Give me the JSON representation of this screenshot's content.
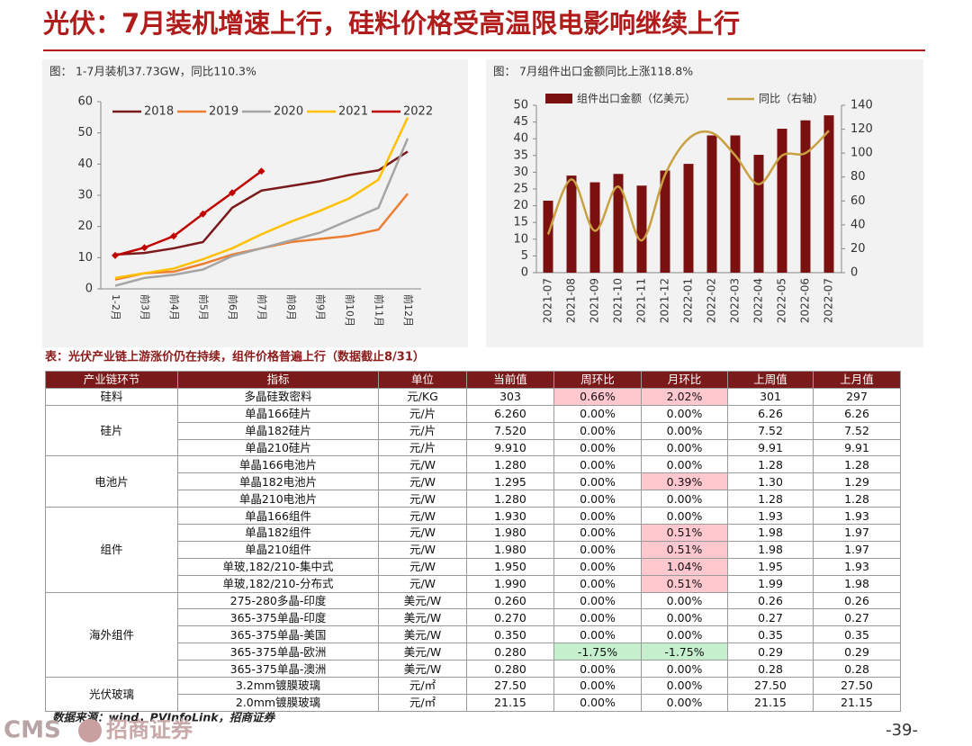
{
  "header": {
    "title": "光伏：7月装机增速上行，硅料价格受高温限电影响继续上行"
  },
  "chart_data": [
    {
      "type": "line",
      "title": "图：  1-7月装机37.73GW，同比110.3%",
      "categories": [
        "1-2月",
        "前3月",
        "前4月",
        "前5月",
        "前6月",
        "前7月",
        "前8月",
        "前9月",
        "前10月",
        "前11月",
        "前12月"
      ],
      "series": [
        {
          "name": "2018",
          "color": "#7b1a1a",
          "values": [
            11,
            11.5,
            13,
            15,
            26,
            31.5,
            33,
            34.5,
            36.5,
            38,
            44
          ]
        },
        {
          "name": "2019",
          "color": "#ed7d31",
          "values": [
            3,
            5,
            5.5,
            8,
            11,
            13,
            15,
            16,
            17,
            19,
            30.5
          ]
        },
        {
          "name": "2020",
          "color": "#a5a5a5",
          "values": [
            1,
            3.5,
            4.5,
            6.2,
            10.5,
            13,
            15.5,
            18,
            22,
            26,
            48.2
          ]
        },
        {
          "name": "2021",
          "color": "#ffc000",
          "values": [
            3.5,
            5,
            6.5,
            9.5,
            13,
            17.5,
            21.5,
            25,
            29,
            35,
            54.9
          ]
        },
        {
          "name": "2022",
          "color": "#c00000",
          "values": [
            10.7,
            13.2,
            16.9,
            24,
            30.8,
            37.73,
            null,
            null,
            null,
            null,
            null
          ]
        }
      ],
      "ylim": [
        0,
        60
      ],
      "yticks": [
        0,
        10,
        20,
        30,
        40,
        50,
        60
      ],
      "legend": "top"
    },
    {
      "type": "bar",
      "title": "图：  7月组件出口金额同比上涨118.8%",
      "categories": [
        "2021-07",
        "2021-08",
        "2021-09",
        "2021-10",
        "2021-11",
        "2021-12",
        "2022-01",
        "2022-02",
        "2022-03",
        "2022-04",
        "2022-05",
        "2022-06",
        "2022-07"
      ],
      "series": [
        {
          "name": "组件出口金额（亿美元）",
          "type": "bar",
          "color": "#7b1010",
          "values": [
            21.5,
            29,
            27,
            29.5,
            26,
            30.5,
            32.5,
            41,
            41,
            35.2,
            43,
            45.5,
            47
          ]
        },
        {
          "name": "同比（右轴）",
          "type": "line",
          "axis": "y2",
          "color": "#c9a042",
          "values": [
            32,
            78,
            35,
            72,
            27,
            82,
            112,
            117,
            98,
            74,
            98,
            100,
            118.8
          ]
        }
      ],
      "ylim": [
        0,
        50
      ],
      "yticks": [
        0,
        5,
        10,
        15,
        20,
        25,
        30,
        35,
        40,
        45,
        50
      ],
      "y2lim": [
        0,
        140
      ],
      "y2ticks": [
        0,
        20,
        40,
        60,
        80,
        100,
        120,
        140
      ],
      "legend": "top"
    }
  ],
  "table": {
    "title": "表：光伏产业链上游涨价仍在持续，组件价格普遍上行（数据截止8/31）",
    "columns": [
      "产业链环节",
      "指标",
      "单位",
      "当前值",
      "周环比",
      "月环比",
      "上周值",
      "上月值"
    ],
    "groups": [
      {
        "name": "硅料",
        "rows": [
          [
            "多晶硅致密料",
            "元/KG",
            "303",
            "0.66%",
            "2.02%",
            "301",
            "297"
          ]
        ]
      },
      {
        "name": "硅片",
        "rows": [
          [
            "单晶166硅片",
            "元/片",
            "6.260",
            "0.00%",
            "0.00%",
            "6.26",
            "6.26"
          ],
          [
            "单晶182硅片",
            "元/片",
            "7.520",
            "0.00%",
            "0.00%",
            "7.52",
            "7.52"
          ],
          [
            "单晶210硅片",
            "元/片",
            "9.910",
            "0.00%",
            "0.00%",
            "9.91",
            "9.91"
          ]
        ]
      },
      {
        "name": "电池片",
        "rows": [
          [
            "单晶166电池片",
            "元/W",
            "1.280",
            "0.00%",
            "0.00%",
            "1.28",
            "1.28"
          ],
          [
            "单晶182电池片",
            "元/W",
            "1.295",
            "0.00%",
            "0.39%",
            "1.30",
            "1.29"
          ],
          [
            "单晶210电池片",
            "元/W",
            "1.280",
            "0.00%",
            "0.00%",
            "1.28",
            "1.28"
          ]
        ]
      },
      {
        "name": "组件",
        "rows": [
          [
            "单晶166组件",
            "元/W",
            "1.930",
            "0.00%",
            "0.00%",
            "1.93",
            "1.93"
          ],
          [
            "单晶182组件",
            "元/W",
            "1.980",
            "0.00%",
            "0.51%",
            "1.98",
            "1.97"
          ],
          [
            "单晶210组件",
            "元/W",
            "1.980",
            "0.00%",
            "0.51%",
            "1.98",
            "1.97"
          ],
          [
            "单玻,182/210-集中式",
            "元/W",
            "1.950",
            "0.00%",
            "1.04%",
            "1.95",
            "1.93"
          ],
          [
            "单玻,182/210-分布式",
            "元/W",
            "1.990",
            "0.00%",
            "0.51%",
            "1.99",
            "1.98"
          ]
        ]
      },
      {
        "name": "海外组件",
        "rows": [
          [
            "275-280多晶-印度",
            "美元/W",
            "0.260",
            "0.00%",
            "0.00%",
            "0.26",
            "0.26"
          ],
          [
            "365-375单晶-印度",
            "美元/W",
            "0.270",
            "0.00%",
            "0.00%",
            "0.27",
            "0.27"
          ],
          [
            "365-375单晶-美国",
            "美元/W",
            "0.350",
            "0.00%",
            "0.00%",
            "0.35",
            "0.35"
          ],
          [
            "365-375单晶-欧洲",
            "美元/W",
            "0.280",
            "-1.75%",
            "-1.75%",
            "0.29",
            "0.29"
          ],
          [
            "365-375单晶-澳洲",
            "美元/W",
            "0.280",
            "0.00%",
            "0.00%",
            "0.28",
            "0.28"
          ]
        ]
      },
      {
        "name": "光伏玻璃",
        "rows": [
          [
            "3.2mm镀膜玻璃",
            "元/㎡",
            "27.50",
            "0.00%",
            "0.00%",
            "27.50",
            "27.50"
          ],
          [
            "2.0mm镀膜玻璃",
            "元/㎡",
            "21.15",
            "0.00%",
            "0.00%",
            "21.15",
            "21.15"
          ]
        ]
      }
    ]
  },
  "source": "数据来源：wind，PVInfoLink，招商证券",
  "logo": {
    "brand": "CMS",
    "name": "招商证券"
  },
  "page_number": "-39-"
}
